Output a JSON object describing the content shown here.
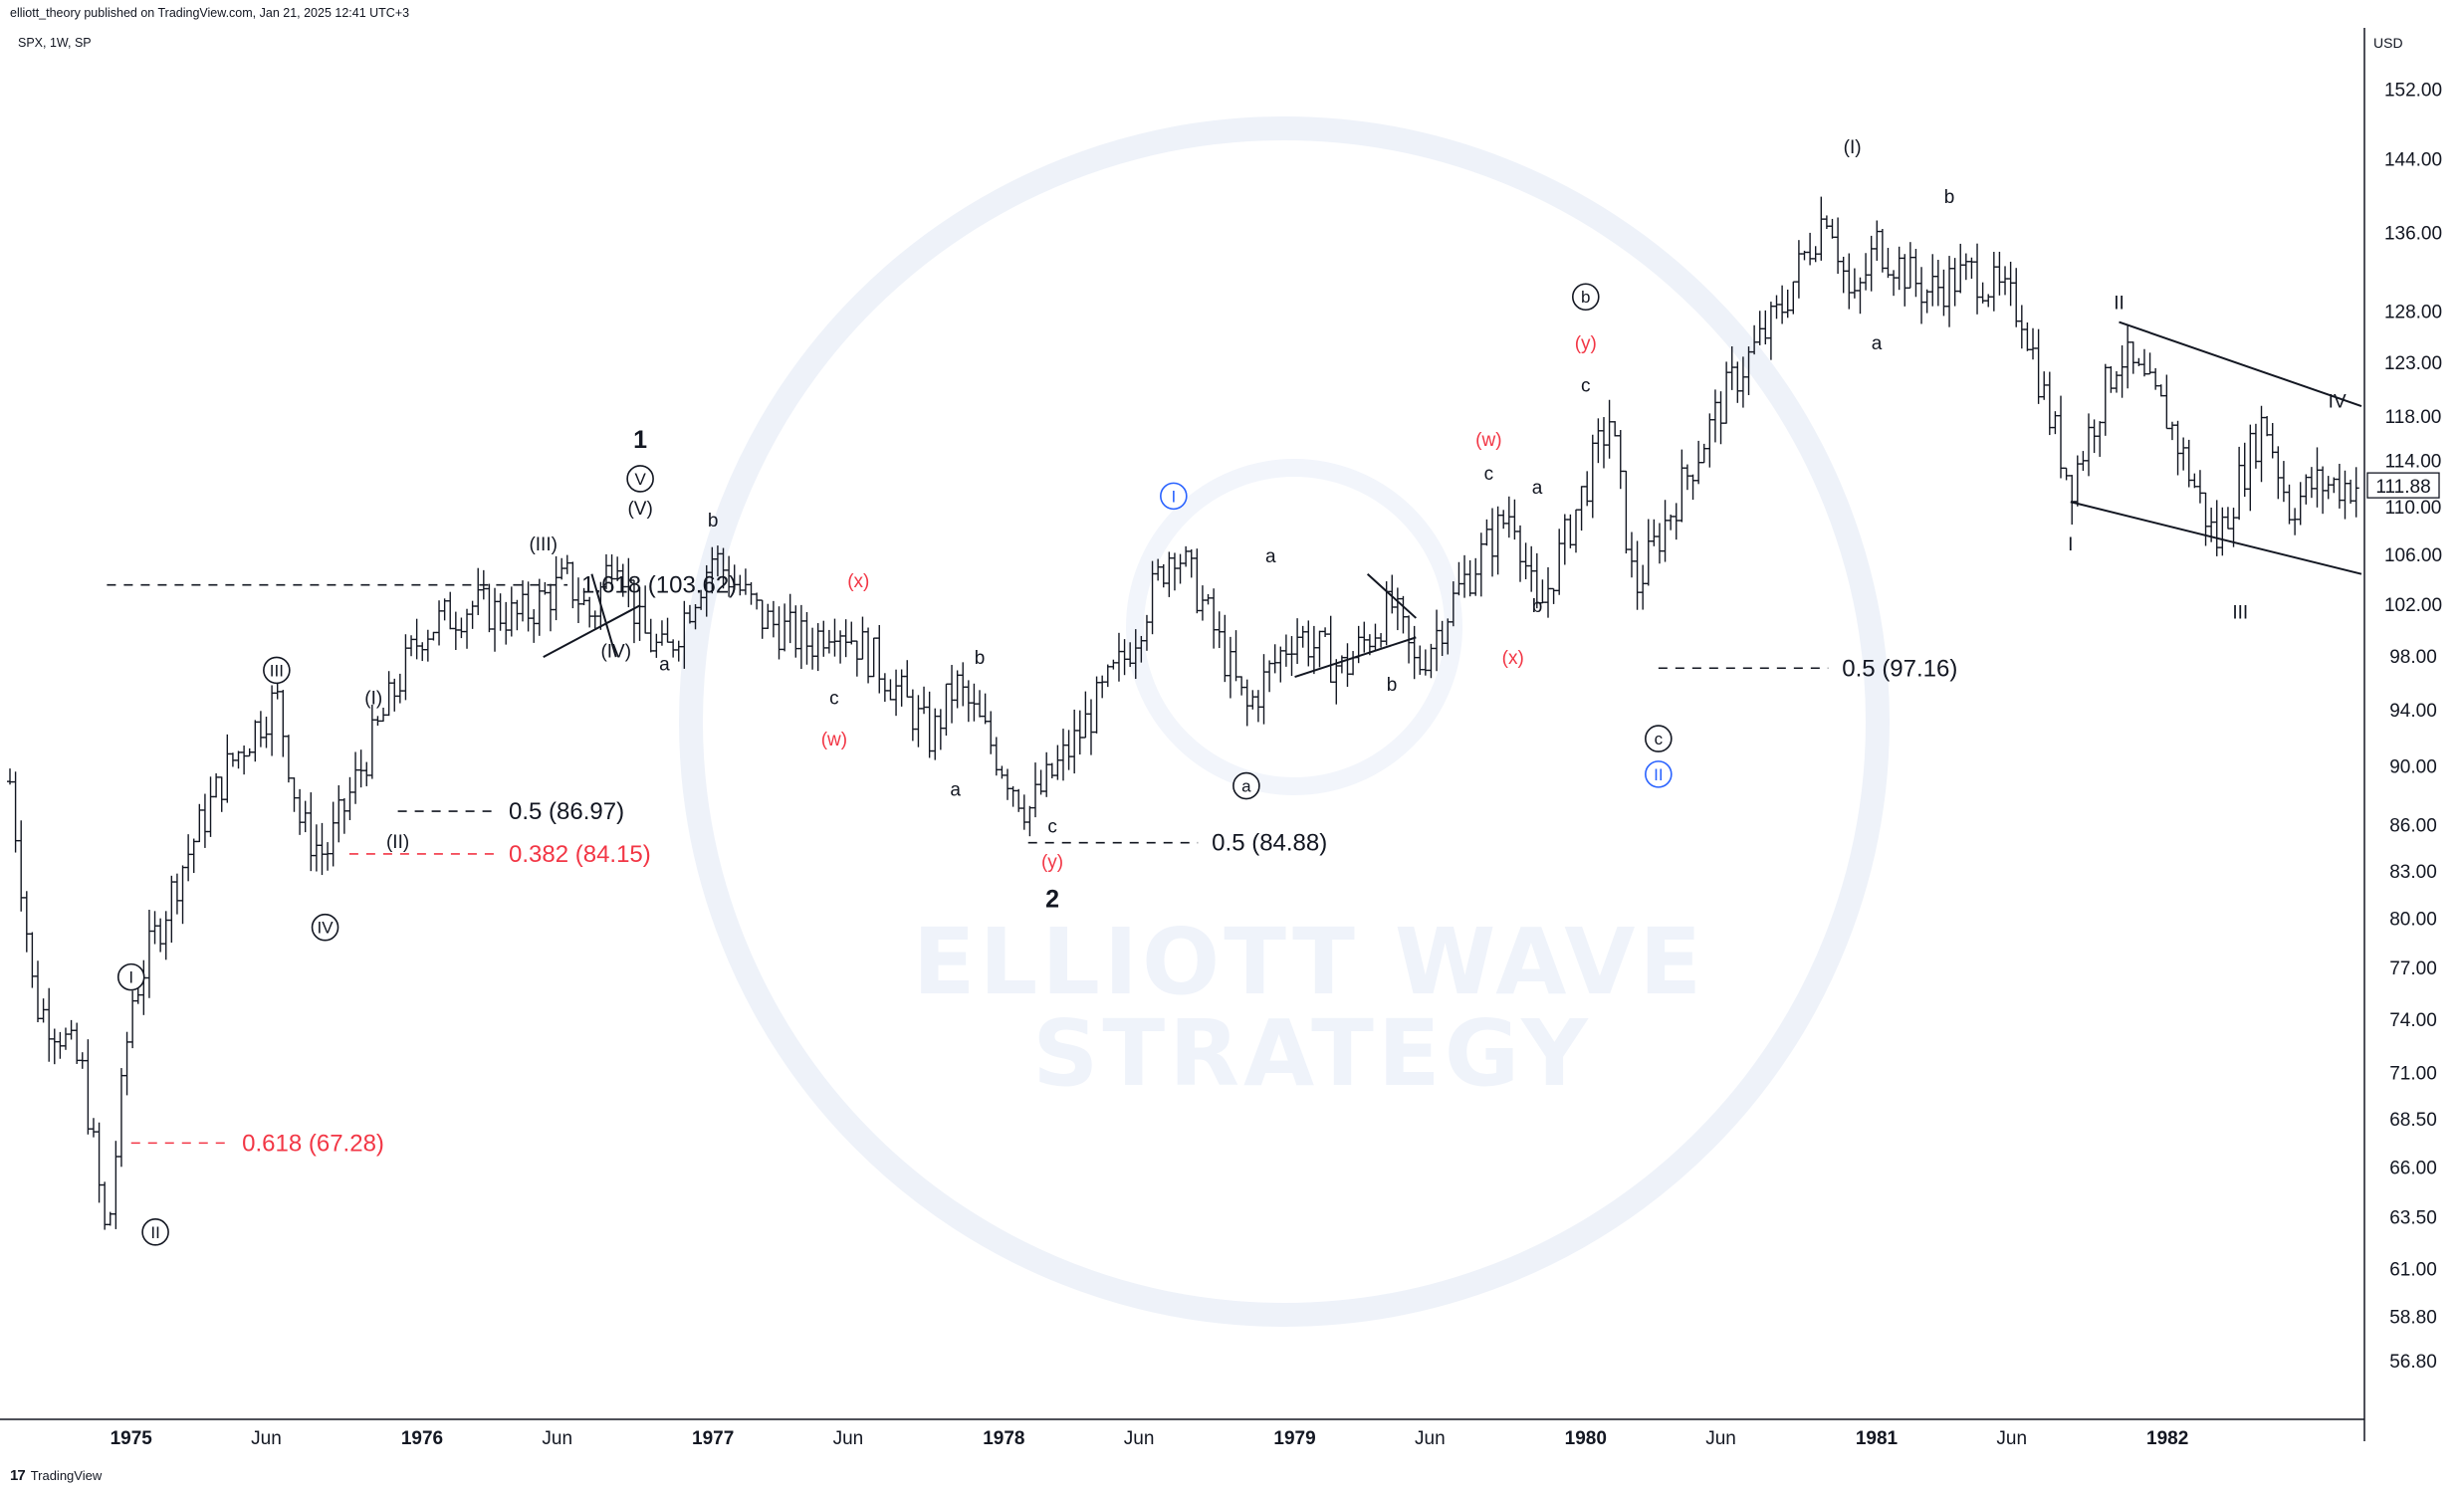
{
  "header": {
    "published_line": "elliott_theory published on TradingView.com, Jan 21, 2025 12:41 UTC+3",
    "symbol_line": "SPX, 1W, SP"
  },
  "footer": {
    "brand": "TradingView"
  },
  "watermark": {
    "line1": "ELLIOTT WAVE",
    "line2": "STRATEGY"
  },
  "chart_data": {
    "type": "candlestick",
    "currency_label": "USD",
    "last_price": "111.88",
    "y_scale": "log",
    "ylim": [
      55,
      158
    ],
    "y_ticks": [
      "56.80",
      "58.80",
      "61.00",
      "63.50",
      "66.00",
      "68.50",
      "71.00",
      "74.00",
      "77.00",
      "80.00",
      "83.00",
      "86.00",
      "90.00",
      "94.00",
      "98.00",
      "102.00",
      "106.00",
      "110.00",
      "114.00",
      "118.00",
      "123.00",
      "128.00",
      "136.00",
      "144.00",
      "152.00"
    ],
    "x_range": [
      "1974-08",
      "1982-09"
    ],
    "x_ticks": [
      {
        "label": "1975",
        "date": "1975-01",
        "year": true
      },
      {
        "label": "Jun",
        "date": "1975-06",
        "year": false
      },
      {
        "label": "1976",
        "date": "1976-01",
        "year": true
      },
      {
        "label": "Jun",
        "date": "1976-06",
        "year": false
      },
      {
        "label": "1977",
        "date": "1977-01",
        "year": true
      },
      {
        "label": "Jun",
        "date": "1977-06",
        "year": false
      },
      {
        "label": "1978",
        "date": "1978-01",
        "year": true
      },
      {
        "label": "Jun",
        "date": "1978-06",
        "year": false
      },
      {
        "label": "1979",
        "date": "1979-01",
        "year": true
      },
      {
        "label": "Jun",
        "date": "1979-06",
        "year": false
      },
      {
        "label": "1980",
        "date": "1980-01",
        "year": true
      },
      {
        "label": "Jun",
        "date": "1980-06",
        "year": false
      },
      {
        "label": "1981",
        "date": "1981-01",
        "year": true
      },
      {
        "label": "Jun",
        "date": "1981-06",
        "year": false
      },
      {
        "label": "1982",
        "date": "1982-01",
        "year": true
      }
    ],
    "price_path": [
      [
        "1974-08",
        89
      ],
      [
        "1974-09",
        75
      ],
      [
        "1974-10",
        73.5
      ],
      [
        "1974-11",
        71
      ],
      [
        "1974-12",
        62
      ],
      [
        "1975-01",
        75
      ],
      [
        "1975-03",
        83
      ],
      [
        "1975-05",
        90
      ],
      [
        "1975-07",
        95
      ],
      [
        "1975-08",
        86
      ],
      [
        "1975-09",
        84
      ],
      [
        "1975-11",
        92
      ],
      [
        "1976-01",
        100
      ],
      [
        "1976-03",
        102
      ],
      [
        "1976-05",
        101
      ],
      [
        "1976-07",
        104
      ],
      [
        "1976-08",
        101
      ],
      [
        "1976-09",
        107
      ],
      [
        "1976-10",
        100
      ],
      [
        "1976-11",
        98
      ],
      [
        "1977-01",
        106
      ],
      [
        "1977-03",
        101
      ],
      [
        "1977-05",
        99
      ],
      [
        "1977-06",
        101
      ],
      [
        "1977-08",
        97
      ],
      [
        "1977-10",
        92
      ],
      [
        "1977-11",
        96
      ],
      [
        "1978-02",
        87
      ],
      [
        "1978-04",
        92
      ],
      [
        "1978-06",
        98
      ],
      [
        "1978-08",
        107
      ],
      [
        "1978-09",
        103
      ],
      [
        "1978-11",
        94
      ],
      [
        "1979-01",
        100
      ],
      [
        "1979-03",
        97
      ],
      [
        "1979-05",
        102
      ],
      [
        "1979-06",
        97
      ],
      [
        "1979-08",
        104
      ],
      [
        "1979-10",
        110
      ],
      [
        "1979-11",
        101
      ],
      [
        "1980-01",
        112
      ],
      [
        "1980-02",
        118
      ],
      [
        "1980-03",
        103
      ],
      [
        "1980-05",
        112
      ],
      [
        "1980-07",
        121
      ],
      [
        "1980-09",
        128
      ],
      [
        "1980-11",
        139
      ],
      [
        "1980-12",
        128
      ],
      [
        "1981-01",
        135
      ],
      [
        "1981-03",
        130
      ],
      [
        "1981-05",
        132
      ],
      [
        "1981-07",
        128
      ],
      [
        "1981-08",
        119
      ],
      [
        "1981-09",
        112
      ],
      [
        "1981-11",
        124
      ],
      [
        "1982-01",
        118
      ],
      [
        "1982-03",
        107
      ],
      [
        "1982-05",
        118
      ],
      [
        "1982-06",
        110
      ],
      [
        "1982-07",
        112
      ]
    ],
    "fib_levels": [
      {
        "text": "1.618 (103.62)",
        "price": 103.62,
        "color": "#131722",
        "from": "1974-12",
        "to": "1976-07"
      },
      {
        "text": "0.5 (86.97)",
        "price": 86.97,
        "color": "#131722",
        "from": "1975-12",
        "to": "1976-04"
      },
      {
        "text": "0.382 (84.15)",
        "price": 84.15,
        "color": "#f23645",
        "from": "1975-10",
        "to": "1976-04"
      },
      {
        "text": "0.618 (67.28)",
        "price": 67.28,
        "color": "#f23645",
        "from": "1975-01",
        "to": "1975-05"
      },
      {
        "text": "0.5 (84.88)",
        "price": 84.88,
        "color": "#131722",
        "from": "1978-02",
        "to": "1978-09"
      },
      {
        "text": "0.5 (97.16)",
        "price": 97.16,
        "color": "#131722",
        "from": "1980-04",
        "to": "1980-11"
      }
    ],
    "wave_labels": [
      {
        "text": "I",
        "date": "1975-01",
        "price": 76.5,
        "style": "circle",
        "color": "#131722"
      },
      {
        "text": "II",
        "date": "1975-02",
        "price": 62.8,
        "style": "circle",
        "color": "#131722"
      },
      {
        "text": "III",
        "date": "1975-07",
        "price": 97,
        "style": "circle",
        "color": "#131722"
      },
      {
        "text": "IV",
        "date": "1975-09",
        "price": 79.5,
        "style": "circle",
        "color": "#131722"
      },
      {
        "text": "(I)",
        "date": "1975-11",
        "price": 95,
        "style": "plain",
        "color": "#131722"
      },
      {
        "text": "(II)",
        "date": "1975-12",
        "price": 85,
        "style": "plain",
        "color": "#131722"
      },
      {
        "text": "(III)",
        "date": "1976-06",
        "price": 107,
        "style": "plain",
        "color": "#131722"
      },
      {
        "text": "(IV)",
        "date": "1976-09",
        "price": 98.5,
        "style": "plain",
        "color": "#131722"
      },
      {
        "text": "(V)",
        "date": "1976-10",
        "price": 110,
        "style": "plain",
        "color": "#131722"
      },
      {
        "text": "V",
        "date": "1976-10",
        "price": 112.5,
        "style": "circle",
        "color": "#131722"
      },
      {
        "text": "1",
        "date": "1976-10",
        "price": 116,
        "style": "bold",
        "color": "#131722"
      },
      {
        "text": "a",
        "date": "1976-11",
        "price": 97.5,
        "style": "plain",
        "color": "#131722"
      },
      {
        "text": "b",
        "date": "1977-01",
        "price": 109,
        "style": "plain",
        "color": "#131722"
      },
      {
        "text": "(x)",
        "date": "1977-07",
        "price": 104,
        "style": "plain",
        "color": "#f23645"
      },
      {
        "text": "c",
        "date": "1977-06",
        "price": 95,
        "style": "plain",
        "color": "#131722"
      },
      {
        "text": "(w)",
        "date": "1977-06",
        "price": 92,
        "style": "plain",
        "color": "#f23645"
      },
      {
        "text": "b",
        "date": "1977-12",
        "price": 98,
        "style": "plain",
        "color": "#131722"
      },
      {
        "text": "a",
        "date": "1977-11",
        "price": 88.5,
        "style": "plain",
        "color": "#131722"
      },
      {
        "text": "c",
        "date": "1978-03",
        "price": 86,
        "style": "plain",
        "color": "#131722"
      },
      {
        "text": "(y)",
        "date": "1978-03",
        "price": 83.7,
        "style": "plain",
        "color": "#f23645"
      },
      {
        "text": "2",
        "date": "1978-03",
        "price": 81.3,
        "style": "bold",
        "color": "#131722"
      },
      {
        "text": "I",
        "date": "1978-08",
        "price": 111,
        "style": "circle",
        "color": "#2962ff"
      },
      {
        "text": "a",
        "date": "1978-12",
        "price": 106,
        "style": "plain",
        "color": "#131722"
      },
      {
        "text": "b",
        "date": "1979-05",
        "price": 96,
        "style": "plain",
        "color": "#131722"
      },
      {
        "text": "a",
        "date": "1978-11",
        "price": 88.7,
        "style": "circle",
        "color": "#131722"
      },
      {
        "text": "(w)",
        "date": "1979-09",
        "price": 116,
        "style": "plain",
        "color": "#f23645"
      },
      {
        "text": "c",
        "date": "1979-09",
        "price": 113,
        "style": "plain",
        "color": "#131722"
      },
      {
        "text": "a",
        "date": "1979-11",
        "price": 111.8,
        "style": "plain",
        "color": "#131722"
      },
      {
        "text": "(x)",
        "date": "1979-10",
        "price": 98,
        "style": "plain",
        "color": "#f23645"
      },
      {
        "text": "b",
        "date": "1979-11",
        "price": 102,
        "style": "plain",
        "color": "#131722"
      },
      {
        "text": "b",
        "date": "1980-01",
        "price": 129.5,
        "style": "circle",
        "color": "#131722"
      },
      {
        "text": "(y)",
        "date": "1980-01",
        "price": 125,
        "style": "plain",
        "color": "#f23645"
      },
      {
        "text": "c",
        "date": "1980-01",
        "price": 121,
        "style": "plain",
        "color": "#131722"
      },
      {
        "text": "c",
        "date": "1980-04",
        "price": 92,
        "style": "circle",
        "color": "#131722"
      },
      {
        "text": "II",
        "date": "1980-04",
        "price": 89.5,
        "style": "circle",
        "color": "#2962ff"
      },
      {
        "text": "(I)",
        "date": "1980-12",
        "price": 145.5,
        "style": "plain",
        "color": "#131722"
      },
      {
        "text": "a",
        "date": "1981-01",
        "price": 125,
        "style": "plain",
        "color": "#131722"
      },
      {
        "text": "b",
        "date": "1981-04",
        "price": 140,
        "style": "plain",
        "color": "#131722"
      },
      {
        "text": "I",
        "date": "1981-09",
        "price": 107,
        "style": "plain",
        "color": "#131722"
      },
      {
        "text": "II",
        "date": "1981-11",
        "price": 129,
        "style": "plain",
        "color": "#131722"
      },
      {
        "text": "III",
        "date": "1982-04",
        "price": 101.5,
        "style": "plain",
        "color": "#131722"
      },
      {
        "text": "IV",
        "date": "1982-08",
        "price": 119.5,
        "style": "plain",
        "color": "#131722"
      }
    ],
    "trendlines": [
      {
        "from": [
          "1976-08",
          104.5
        ],
        "to": [
          "1976-09",
          98
        ]
      },
      {
        "from": [
          "1976-06",
          98
        ],
        "to": [
          "1976-10",
          102
        ]
      },
      {
        "from": [
          "1979-04",
          104.5
        ],
        "to": [
          "1979-06",
          101
        ]
      },
      {
        "from": [
          "1979-01",
          96.5
        ],
        "to": [
          "1979-06",
          99.5
        ]
      },
      {
        "from": [
          "1981-11",
          127
        ],
        "to": [
          "1982-09",
          119
        ]
      },
      {
        "from": [
          "1981-09",
          110.5
        ],
        "to": [
          "1982-09",
          104.5
        ]
      }
    ]
  }
}
